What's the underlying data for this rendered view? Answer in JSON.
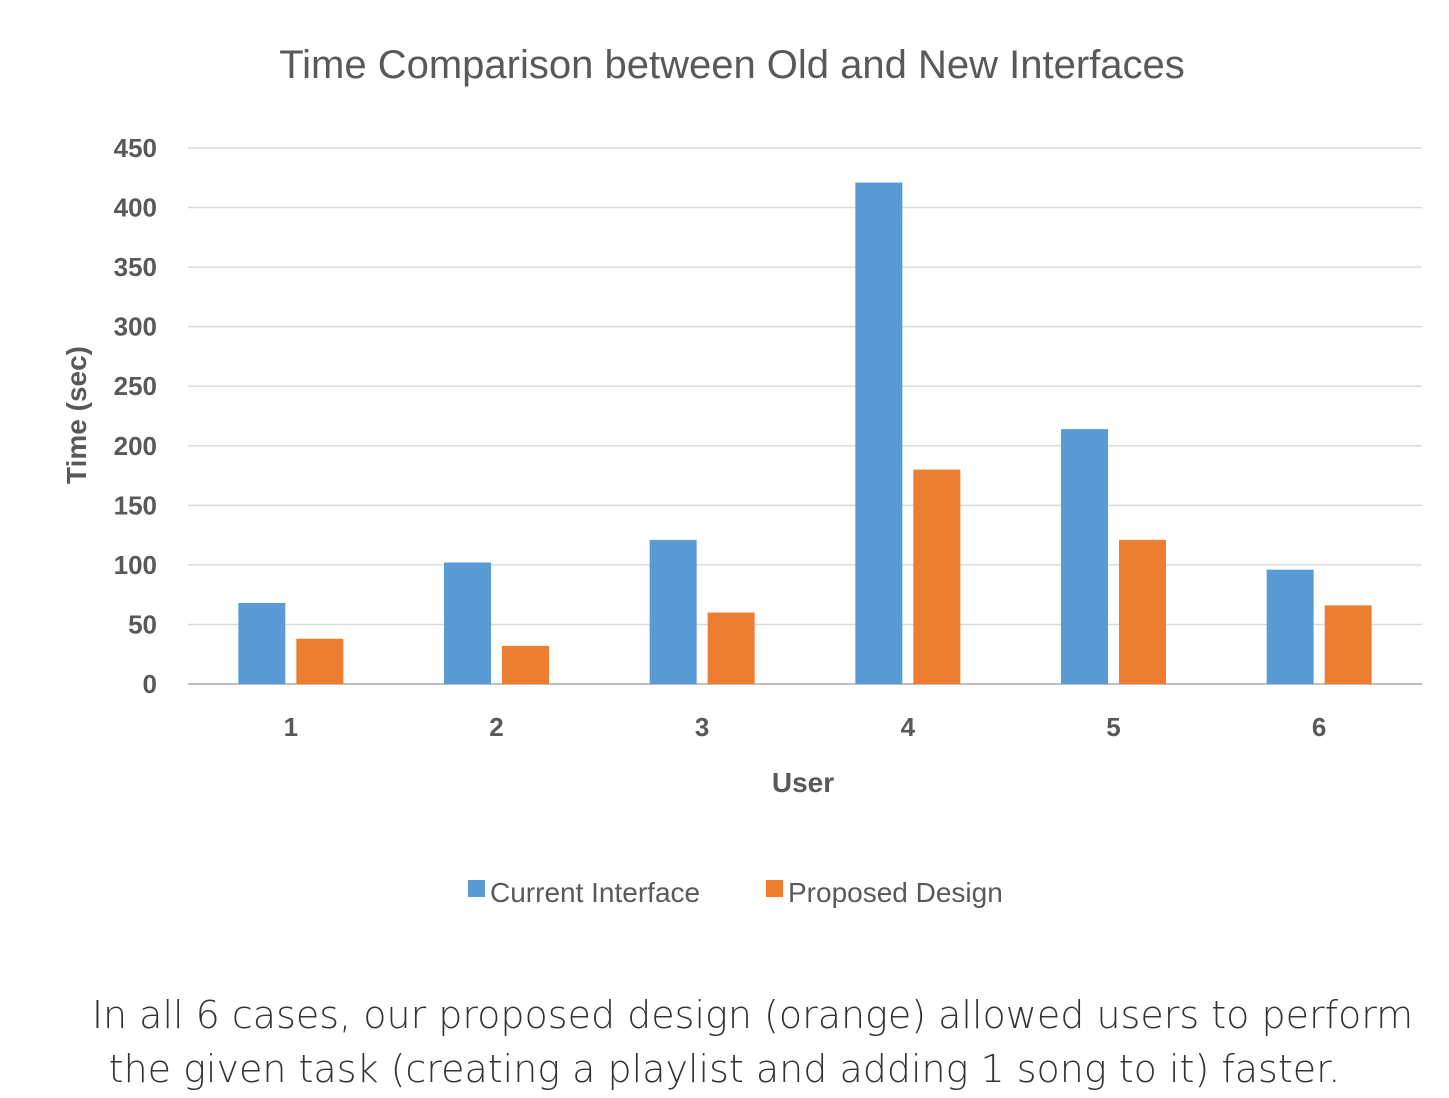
{
  "chart_data": {
    "type": "bar",
    "title": "Time Comparison between Old and New Interfaces",
    "xlabel": "User",
    "ylabel": "Time (sec)",
    "categories": [
      "1",
      "2",
      "3",
      "4",
      "5",
      "6"
    ],
    "series": [
      {
        "name": "Current Interface",
        "color": "#5b9bd5",
        "values": [
          68,
          102,
          121,
          421,
          214,
          96
        ]
      },
      {
        "name": "Proposed Design",
        "color": "#ed7d31",
        "values": [
          38,
          32,
          60,
          180,
          121,
          66
        ]
      }
    ],
    "ylim": [
      0,
      450
    ],
    "yticks": [
      "0",
      "50",
      "100",
      "150",
      "200",
      "250",
      "300",
      "350",
      "400",
      "450"
    ],
    "grid": true,
    "legend": "bottom"
  },
  "caption": {
    "line1": "In all 6 cases, our proposed design (orange) allowed users to perform",
    "line2": "the given task (creating a playlist and adding 1 song to it) faster."
  }
}
